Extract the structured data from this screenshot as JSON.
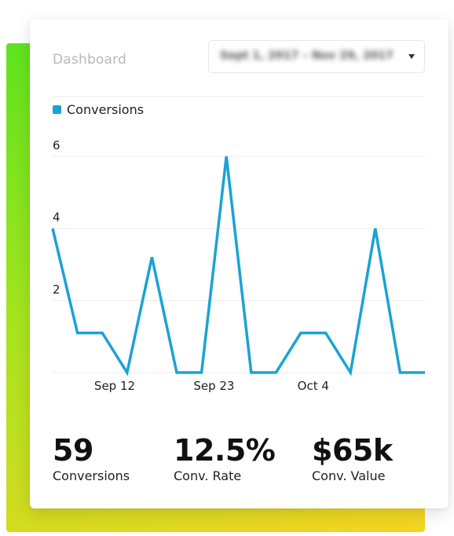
{
  "header": {
    "title": "Dashboard",
    "date_range": "Sept 1, 2017 – Nov 29, 2017"
  },
  "colors": {
    "series": "#1aa3d3",
    "grid": "#ececec"
  },
  "chart_data": {
    "type": "line",
    "legend_position": "top-left",
    "grid": true,
    "series": [
      {
        "name": "Conversions",
        "values": [
          4,
          1.1,
          1.1,
          0,
          3.2,
          0,
          0,
          6,
          0,
          0,
          1.1,
          1.1,
          0,
          4,
          0,
          0
        ]
      }
    ],
    "x_tick_labels": [
      {
        "label": "Sep 12",
        "index": 2.5
      },
      {
        "label": "Sep 23",
        "index": 6.5
      },
      {
        "label": "Oct 4",
        "index": 10.5
      }
    ],
    "y_ticks": [
      2,
      4,
      6
    ],
    "ylim": [
      0,
      6
    ]
  },
  "stats": [
    {
      "value": "59",
      "label": "Conversions"
    },
    {
      "value": "12.5%",
      "label": "Conv. Rate"
    },
    {
      "value": "$65k",
      "label": "Conv. Value"
    }
  ]
}
